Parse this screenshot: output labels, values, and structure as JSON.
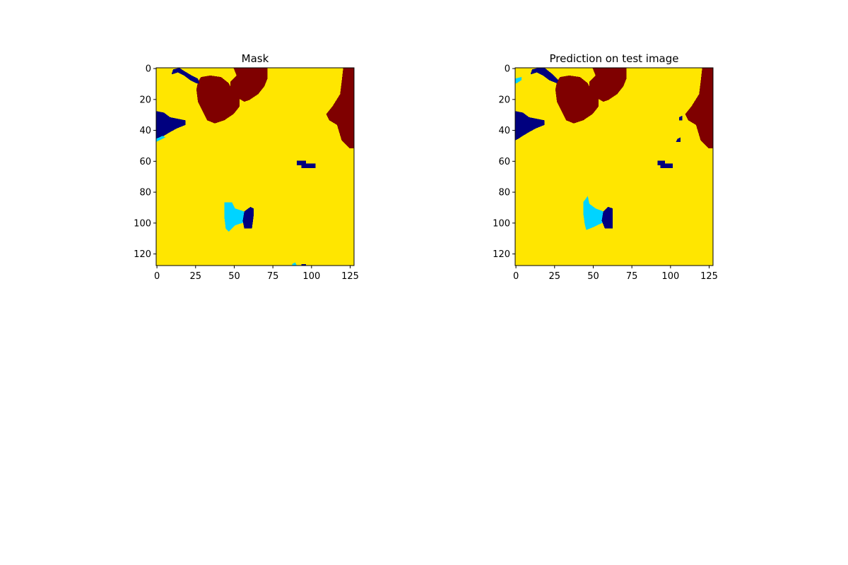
{
  "colors": {
    "background": "#ffe600",
    "light_blue": "#00d4ff",
    "dark_blue": "#00007f",
    "dark_red": "#7f0000"
  },
  "chart_data": [
    {
      "type": "heatmap",
      "title": "Mask",
      "colormap": "jet",
      "xlabel": "",
      "ylabel": "",
      "xlim": [
        0,
        127
      ],
      "ylim": [
        127,
        0
      ],
      "xticks": [
        "0",
        "25",
        "50",
        "75",
        "100",
        "125"
      ],
      "yticks": [
        "0",
        "20",
        "40",
        "60",
        "80",
        "100",
        "120"
      ],
      "regions": [
        {
          "class": "dark_red",
          "label": "blob upper center-left",
          "points": [
            [
              29,
              6
            ],
            [
              35,
              5
            ],
            [
              42,
              6
            ],
            [
              47,
              10
            ],
            [
              50,
              16
            ],
            [
              54,
              20
            ],
            [
              54,
              25
            ],
            [
              50,
              30
            ],
            [
              44,
              34
            ],
            [
              38,
              36
            ],
            [
              33,
              34
            ],
            [
              30,
              28
            ],
            [
              27,
              22
            ],
            [
              26,
              14
            ],
            [
              27,
              9
            ]
          ]
        },
        {
          "class": "dark_red",
          "label": "blob upper center",
          "points": [
            [
              50,
              0
            ],
            [
              72,
              0
            ],
            [
              72,
              7
            ],
            [
              70,
              12
            ],
            [
              66,
              17
            ],
            [
              60,
              21
            ],
            [
              57,
              22
            ],
            [
              52,
              19
            ],
            [
              48,
              14
            ],
            [
              48,
              9
            ],
            [
              52,
              5
            ]
          ]
        },
        {
          "class": "dark_red",
          "label": "blob right edge",
          "points": [
            [
              121,
              0
            ],
            [
              128,
              0
            ],
            [
              128,
              52
            ],
            [
              125,
              52
            ],
            [
              120,
              47
            ],
            [
              117,
              37
            ],
            [
              112,
              34
            ],
            [
              110,
              30
            ],
            [
              114,
              25
            ],
            [
              119,
              17
            ],
            [
              120,
              9
            ]
          ]
        },
        {
          "class": "dark_blue",
          "label": "patch top left",
          "points": [
            [
              10,
              4
            ],
            [
              11,
              1
            ],
            [
              15,
              0
            ],
            [
              18,
              2
            ],
            [
              23,
              5
            ],
            [
              27,
              7
            ],
            [
              28,
              10
            ],
            [
              26,
              10
            ],
            [
              22,
              8
            ],
            [
              18,
              5
            ],
            [
              14,
              3
            ],
            [
              11,
              4
            ]
          ]
        },
        {
          "class": "dark_blue",
          "label": "patch left edge",
          "points": [
            [
              0,
              28
            ],
            [
              5,
              29
            ],
            [
              9,
              32
            ],
            [
              14,
              33
            ],
            [
              19,
              34
            ],
            [
              19,
              37
            ],
            [
              14,
              39
            ],
            [
              10,
              41
            ],
            [
              5,
              44
            ],
            [
              2,
              46
            ],
            [
              0,
              47
            ]
          ]
        },
        {
          "class": "light_blue",
          "label": "edge sliver left",
          "points": [
            [
              0,
              46
            ],
            [
              4,
              44
            ],
            [
              6,
              45
            ],
            [
              2,
              47
            ],
            [
              0,
              48
            ]
          ]
        },
        {
          "class": "dark_blue",
          "label": "patch center right",
          "points": [
            [
              91,
              60
            ],
            [
              97,
              60
            ],
            [
              97,
              62
            ],
            [
              103,
              62
            ],
            [
              103,
              65
            ],
            [
              94,
              65
            ],
            [
              94,
              63
            ],
            [
              91,
              63
            ]
          ]
        },
        {
          "class": "light_blue",
          "label": "patch bottom center",
          "points": [
            [
              44,
              87
            ],
            [
              49,
              87
            ],
            [
              51,
              91
            ],
            [
              57,
              93
            ],
            [
              57,
              100
            ],
            [
              51,
              102
            ],
            [
              47,
              106
            ],
            [
              45,
              104
            ],
            [
              44,
              96
            ]
          ]
        },
        {
          "class": "dark_blue",
          "label": "patch bottom center right",
          "points": [
            [
              57,
              93
            ],
            [
              61,
              90
            ],
            [
              63,
              91
            ],
            [
              63,
              96
            ],
            [
              62,
              104
            ],
            [
              57,
              104
            ],
            [
              56,
              99
            ]
          ]
        },
        {
          "class": "light_blue",
          "label": "speck bottom",
          "points": [
            [
              88,
              127
            ],
            [
              90,
              126
            ],
            [
              91,
              128
            ],
            [
              88,
              128
            ]
          ]
        },
        {
          "class": "dark_blue",
          "label": "speck bottom",
          "points": [
            [
              94,
              127
            ],
            [
              97,
              127
            ],
            [
              97,
              128
            ],
            [
              94,
              128
            ]
          ]
        }
      ]
    },
    {
      "type": "heatmap",
      "title": "Prediction on test image",
      "colormap": "jet",
      "xlabel": "",
      "ylabel": "",
      "xlim": [
        0,
        127
      ],
      "ylim": [
        127,
        0
      ],
      "xticks": [
        "0",
        "25",
        "50",
        "75",
        "100",
        "125"
      ],
      "yticks": [
        "0",
        "20",
        "40",
        "60",
        "80",
        "100",
        "120"
      ],
      "regions": [
        {
          "class": "dark_red",
          "label": "blob upper center-left",
          "points": [
            [
              29,
              6
            ],
            [
              35,
              5
            ],
            [
              42,
              6
            ],
            [
              47,
              10
            ],
            [
              50,
              16
            ],
            [
              54,
              20
            ],
            [
              54,
              25
            ],
            [
              50,
              30
            ],
            [
              44,
              34
            ],
            [
              38,
              36
            ],
            [
              33,
              34
            ],
            [
              30,
              28
            ],
            [
              27,
              22
            ],
            [
              26,
              14
            ],
            [
              27,
              9
            ]
          ]
        },
        {
          "class": "dark_red",
          "label": "blob upper center",
          "points": [
            [
              50,
              0
            ],
            [
              72,
              0
            ],
            [
              72,
              7
            ],
            [
              70,
              12
            ],
            [
              66,
              17
            ],
            [
              60,
              21
            ],
            [
              57,
              22
            ],
            [
              52,
              19
            ],
            [
              48,
              14
            ],
            [
              48,
              9
            ],
            [
              52,
              5
            ]
          ]
        },
        {
          "class": "dark_red",
          "label": "blob right edge",
          "points": [
            [
              121,
              0
            ],
            [
              128,
              0
            ],
            [
              128,
              52
            ],
            [
              125,
              52
            ],
            [
              120,
              47
            ],
            [
              117,
              37
            ],
            [
              112,
              34
            ],
            [
              110,
              30
            ],
            [
              114,
              25
            ],
            [
              119,
              17
            ],
            [
              120,
              9
            ]
          ]
        },
        {
          "class": "dark_blue",
          "label": "patch top left",
          "points": [
            [
              10,
              4
            ],
            [
              11,
              1
            ],
            [
              15,
              0
            ],
            [
              19,
              0
            ],
            [
              24,
              4
            ],
            [
              28,
              8
            ],
            [
              27,
              10
            ],
            [
              22,
              8
            ],
            [
              18,
              5
            ],
            [
              14,
              3
            ],
            [
              11,
              4
            ]
          ]
        },
        {
          "class": "light_blue",
          "label": "sliver top left",
          "points": [
            [
              0,
              7
            ],
            [
              4,
              6
            ],
            [
              4,
              8
            ],
            [
              1,
              10
            ],
            [
              0,
              10
            ]
          ]
        },
        {
          "class": "dark_blue",
          "label": "patch left edge",
          "points": [
            [
              0,
              28
            ],
            [
              5,
              29
            ],
            [
              9,
              32
            ],
            [
              14,
              33
            ],
            [
              19,
              34
            ],
            [
              19,
              37
            ],
            [
              14,
              39
            ],
            [
              10,
              41
            ],
            [
              5,
              44
            ],
            [
              2,
              46
            ],
            [
              0,
              47
            ]
          ]
        },
        {
          "class": "dark_blue",
          "label": "speck center right",
          "points": [
            [
              106,
              32
            ],
            [
              108,
              31
            ],
            [
              108,
              34
            ],
            [
              106,
              34
            ]
          ]
        },
        {
          "class": "dark_blue",
          "label": "speck center right",
          "points": [
            [
              105,
              46
            ],
            [
              107,
              45
            ],
            [
              107,
              48
            ],
            [
              104,
              48
            ]
          ]
        },
        {
          "class": "dark_blue",
          "label": "patch center right",
          "points": [
            [
              92,
              60
            ],
            [
              97,
              60
            ],
            [
              97,
              62
            ],
            [
              102,
              62
            ],
            [
              102,
              65
            ],
            [
              94,
              65
            ],
            [
              94,
              63
            ],
            [
              92,
              63
            ]
          ]
        },
        {
          "class": "light_blue",
          "label": "patch bottom center",
          "points": [
            [
              44,
              87
            ],
            [
              47,
              83
            ],
            [
              48,
              88
            ],
            [
              52,
              91
            ],
            [
              57,
              93
            ],
            [
              57,
              100
            ],
            [
              51,
              103
            ],
            [
              46,
              105
            ],
            [
              45,
              101
            ],
            [
              44,
              94
            ]
          ]
        },
        {
          "class": "dark_blue",
          "label": "patch bottom center right",
          "points": [
            [
              57,
              93
            ],
            [
              60,
              90
            ],
            [
              63,
              91
            ],
            [
              63,
              96
            ],
            [
              63,
              104
            ],
            [
              58,
              104
            ],
            [
              56,
              99
            ]
          ]
        }
      ]
    }
  ]
}
